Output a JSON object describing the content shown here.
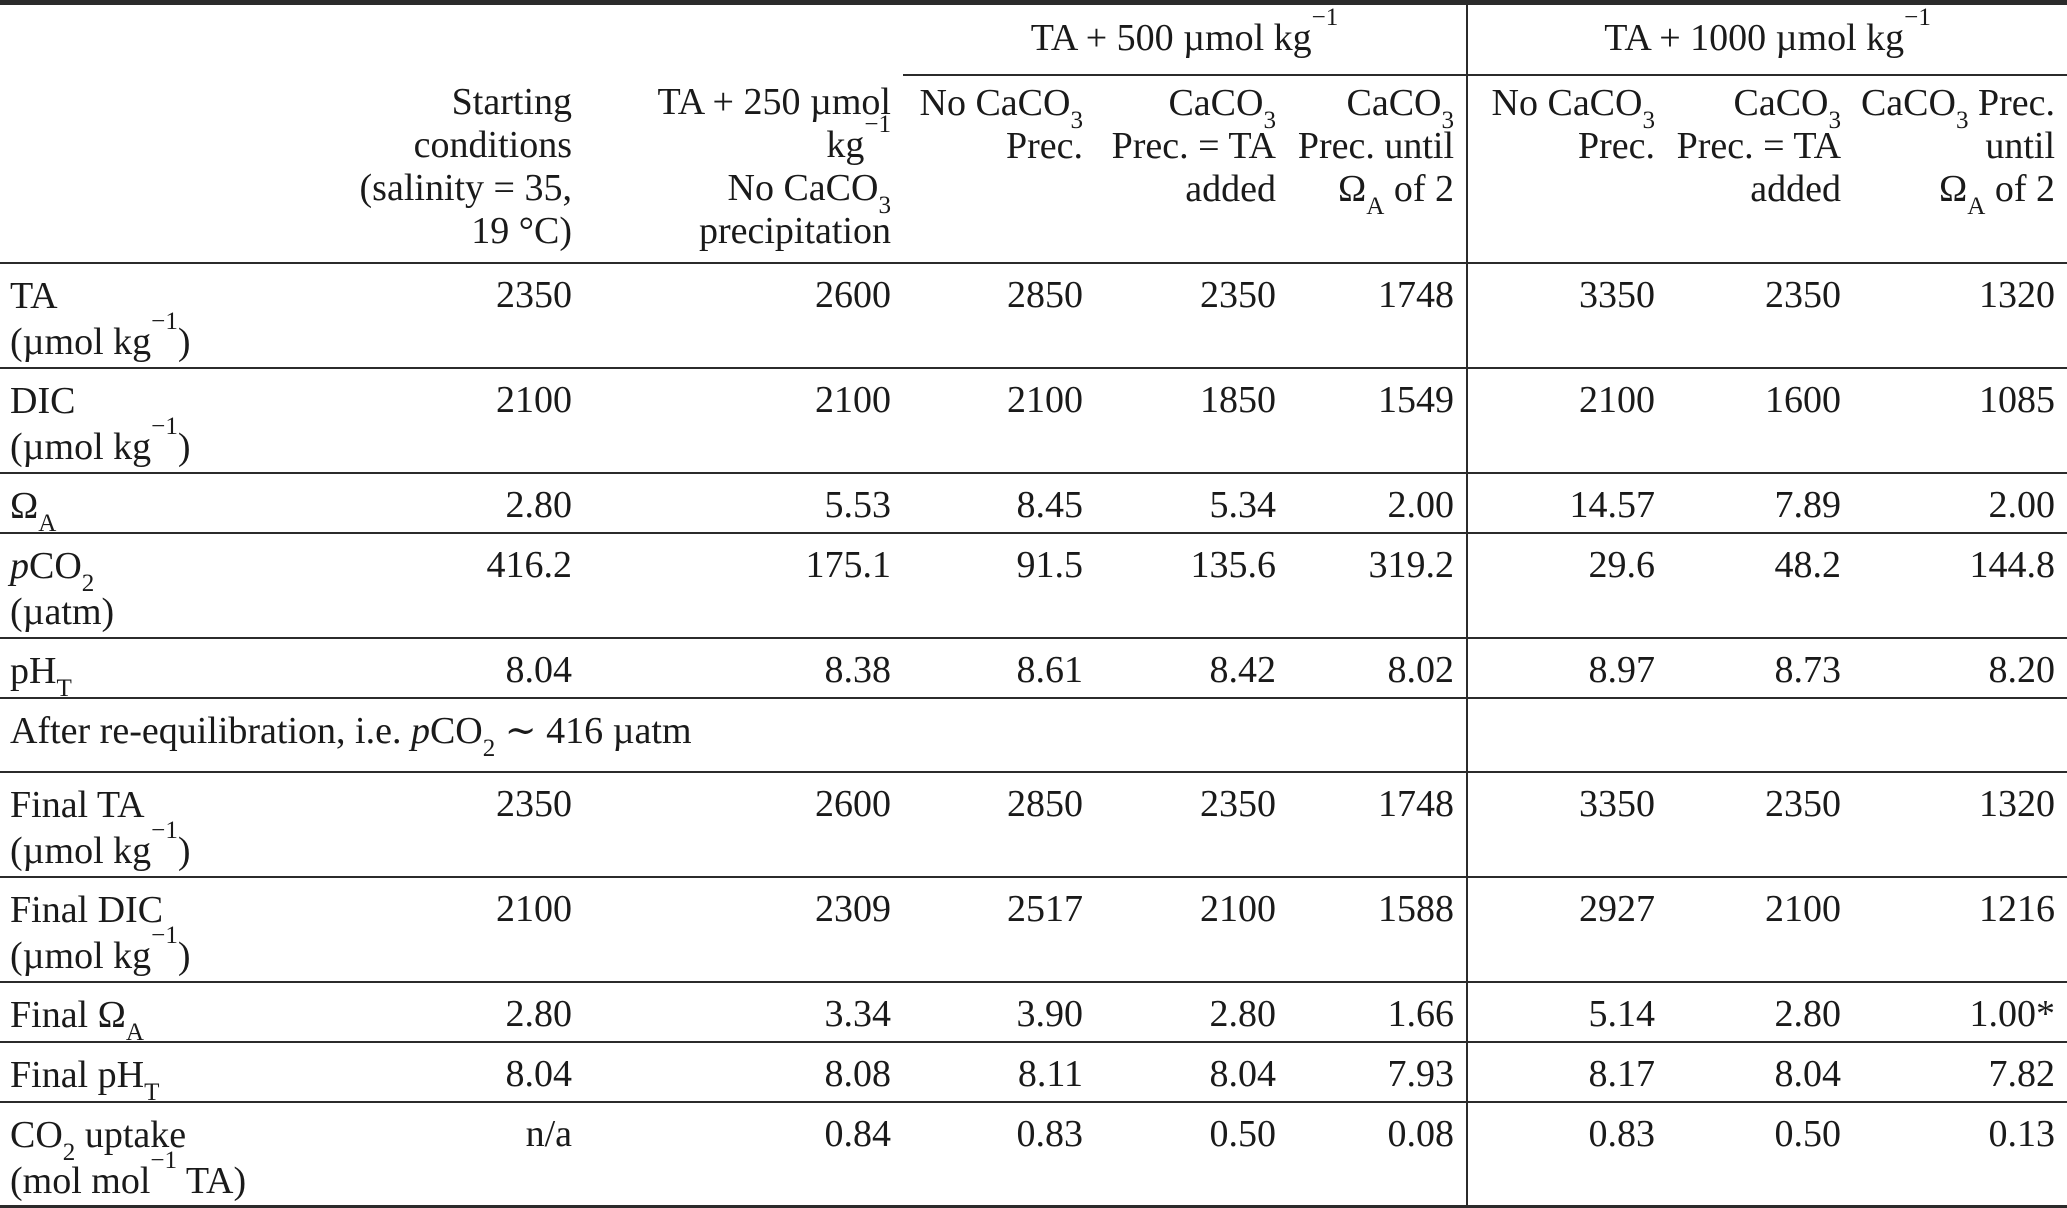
{
  "page": {
    "background": "#ffffff",
    "text_color": "#1a1a1a",
    "rule_color": "#2b2b2b"
  },
  "table": {
    "group_headers": [
      {
        "label": "",
        "span": 3
      },
      {
        "label": "TA + 500 µmol kg^{−1}",
        "span": 3
      },
      {
        "label": "TA + 1000 µmol kg^{−1}",
        "span": 3
      }
    ],
    "column_headers": [
      {
        "lines": []
      },
      {
        "lines": [
          "Starting",
          "conditions",
          "(salinity = 35, 19 °C)"
        ]
      },
      {
        "lines": [
          "TA + 250 µmol kg^{−1}",
          "No CaCO_{3}",
          "precipitation"
        ]
      },
      {
        "lines": [
          "No CaCO_{3}",
          "Prec."
        ]
      },
      {
        "lines": [
          "CaCO_{3}",
          "Prec. = TA",
          "added"
        ]
      },
      {
        "lines": [
          "CaCO_{3}",
          "Prec. until",
          "Ω_{A} of 2"
        ]
      },
      {
        "lines": [
          "No CaCO_{3}",
          "Prec."
        ]
      },
      {
        "lines": [
          "CaCO_{3}",
          "Prec. = TA",
          "added"
        ]
      },
      {
        "lines": [
          "CaCO_{3} Prec.",
          "until",
          "Ω_{A} of 2"
        ]
      }
    ],
    "rows": [
      {
        "type": "data",
        "label": "TA",
        "unit": "(µmol kg^{−1})",
        "values": [
          "2350",
          "2600",
          "2850",
          "2350",
          "1748",
          "3350",
          "2350",
          "1320"
        ]
      },
      {
        "type": "data",
        "label": "DIC",
        "unit": "(µmol kg^{−1})",
        "values": [
          "2100",
          "2100",
          "2100",
          "1850",
          "1549",
          "2100",
          "1600",
          "1085"
        ]
      },
      {
        "type": "data",
        "label": "Ω_{A}",
        "unit": "",
        "values": [
          "2.80",
          "5.53",
          "8.45",
          "5.34",
          "2.00",
          "14.57",
          "7.89",
          "2.00"
        ]
      },
      {
        "type": "data",
        "label": "*p*CO_{2}",
        "unit": "(µatm)",
        "values": [
          "416.2",
          "175.1",
          "91.5",
          "135.6",
          "319.2",
          "29.6",
          "48.2",
          "144.8"
        ]
      },
      {
        "type": "data",
        "label": "pH_{T}",
        "unit": "",
        "values": [
          "8.04",
          "8.38",
          "8.61",
          "8.42",
          "8.02",
          "8.97",
          "8.73",
          "8.20"
        ]
      },
      {
        "type": "section",
        "label": "After re-equilibration, i.e. *p*CO_{2} ∼ 416 µatm"
      },
      {
        "type": "data",
        "label": "Final TA",
        "unit": "(µmol kg^{−1})",
        "values": [
          "2350",
          "2600",
          "2850",
          "2350",
          "1748",
          "3350",
          "2350",
          "1320"
        ]
      },
      {
        "type": "data",
        "label": "Final DIC",
        "unit": "(µmol kg^{−1})",
        "values": [
          "2100",
          "2309",
          "2517",
          "2100",
          "1588",
          "2927",
          "2100",
          "1216"
        ]
      },
      {
        "type": "data",
        "label": "Final Ω_{A}",
        "unit": "",
        "values": [
          "2.80",
          "3.34",
          "3.90",
          "2.80",
          "1.66",
          "5.14",
          "2.80",
          "1.00*"
        ]
      },
      {
        "type": "data",
        "label": "Final pH_{T}",
        "unit": "",
        "values": [
          "8.04",
          "8.08",
          "8.11",
          "8.04",
          "7.93",
          "8.17",
          "8.04",
          "7.82"
        ]
      },
      {
        "type": "data",
        "label": "CO_{2} uptake",
        "unit": "(mol mol^{−1} TA)",
        "values": [
          "n/a",
          "0.84",
          "0.83",
          "0.50",
          "0.08",
          "0.83",
          "0.50",
          "0.13"
        ]
      }
    ]
  }
}
